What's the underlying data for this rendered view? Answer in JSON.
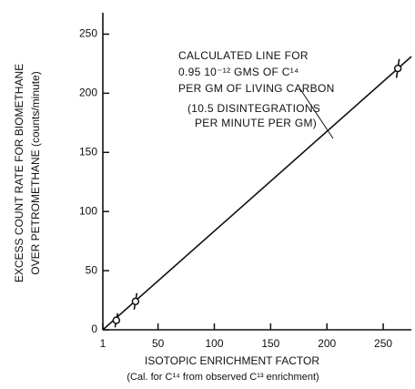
{
  "chart_data": {
    "type": "scatter",
    "x_label": [
      "ISOTOPIC   ENRICHMENT FACTOR",
      "(Cal. for C¹⁴ from observed C¹³ enrichment)"
    ],
    "y_label": [
      "EXCESS COUNT RATE FOR BIOMETHANE",
      "OVER PETROMETHANE (counts/minute)"
    ],
    "annotations": [
      "CALCULATED LINE FOR",
      "0.95 10⁻¹² GMS OF C¹⁴",
      "PER GM OF LIVING CARBON",
      "(10.5 DISINTEGRATIONS",
      "PER MINUTE PER GM)"
    ],
    "x": [
      13,
      30,
      263
    ],
    "values": [
      8,
      24,
      221
    ],
    "errors": [
      6,
      7,
      8
    ],
    "line": {
      "x": [
        1,
        275
      ],
      "values": [
        0,
        231
      ]
    },
    "color": "#111111",
    "xlim": [
      1,
      275
    ],
    "ylim": [
      0,
      265
    ],
    "xticks": [
      1,
      50,
      100,
      150,
      200,
      250
    ],
    "yticks": [
      0,
      50,
      100,
      150,
      200,
      250
    ]
  }
}
